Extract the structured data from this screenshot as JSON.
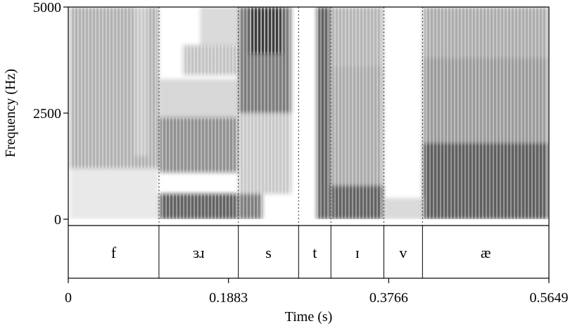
{
  "chart_data": {
    "type": "spectrogram",
    "xlabel": "Time (s)",
    "ylabel": "Frequency (Hz)",
    "xlim": [
      0,
      0.5649
    ],
    "ylim": [
      0,
      5000
    ],
    "x_ticks": [
      {
        "value": 0,
        "label": "0"
      },
      {
        "value": 0.1883,
        "label": "0.1883"
      },
      {
        "value": 0.3766,
        "label": "0.3766"
      },
      {
        "value": 0.5649,
        "label": "0.5649"
      }
    ],
    "y_ticks": [
      {
        "value": 0,
        "label": "0"
      },
      {
        "value": 2500,
        "label": "2500"
      },
      {
        "value": 5000,
        "label": "5000"
      }
    ],
    "boundaries": [
      0.1066,
      0.1999,
      0.2707,
      0.3087,
      0.3709,
      0.4163
    ],
    "segments": [
      {
        "label": "f",
        "start": 0,
        "end": 0.1066
      },
      {
        "label": "ɜɹ",
        "start": 0.1066,
        "end": 0.1999
      },
      {
        "label": "s",
        "start": 0.1999,
        "end": 0.2707
      },
      {
        "label": "t",
        "start": 0.2707,
        "end": 0.3087
      },
      {
        "label": "ɪ",
        "start": 0.3087,
        "end": 0.3709
      },
      {
        "label": "v",
        "start": 0.3709,
        "end": 0.4163
      },
      {
        "label": "æ",
        "start": 0.4163,
        "end": 0.5649
      }
    ],
    "energy_regions": [
      {
        "start": 0.002,
        "end": 0.106,
        "fmin": 1200,
        "fmax": 5000,
        "intensity": 0.42
      },
      {
        "start": 0.002,
        "end": 0.106,
        "fmin": 0,
        "fmax": 1200,
        "intensity": 0.12
      },
      {
        "start": 0.078,
        "end": 0.094,
        "fmin": 1500,
        "fmax": 5000,
        "intensity": 0.22
      },
      {
        "start": 0.107,
        "end": 0.199,
        "fmin": 0,
        "fmax": 600,
        "intensity": 0.85
      },
      {
        "start": 0.107,
        "end": 0.199,
        "fmin": 1100,
        "fmax": 2400,
        "intensity": 0.6
      },
      {
        "start": 0.107,
        "end": 0.199,
        "fmin": 2400,
        "fmax": 3300,
        "intensity": 0.22
      },
      {
        "start": 0.135,
        "end": 0.199,
        "fmin": 3400,
        "fmax": 4100,
        "intensity": 0.32
      },
      {
        "start": 0.155,
        "end": 0.199,
        "fmin": 4100,
        "fmax": 5000,
        "intensity": 0.2
      },
      {
        "start": 0.2,
        "end": 0.262,
        "fmin": 2500,
        "fmax": 5000,
        "intensity": 0.72
      },
      {
        "start": 0.213,
        "end": 0.252,
        "fmin": 3900,
        "fmax": 5000,
        "intensity": 0.95
      },
      {
        "start": 0.2,
        "end": 0.262,
        "fmin": 600,
        "fmax": 2500,
        "intensity": 0.3
      },
      {
        "start": 0.2,
        "end": 0.228,
        "fmin": 0,
        "fmax": 600,
        "intensity": 0.7
      },
      {
        "start": 0.292,
        "end": 0.308,
        "fmin": 0,
        "fmax": 5000,
        "intensity": 0.85
      },
      {
        "start": 0.309,
        "end": 0.37,
        "fmin": 0,
        "fmax": 800,
        "intensity": 0.85
      },
      {
        "start": 0.309,
        "end": 0.37,
        "fmin": 800,
        "fmax": 3600,
        "intensity": 0.45
      },
      {
        "start": 0.309,
        "end": 0.37,
        "fmin": 3600,
        "fmax": 5000,
        "intensity": 0.4
      },
      {
        "start": 0.371,
        "end": 0.416,
        "fmin": 0,
        "fmax": 500,
        "intensity": 0.2
      },
      {
        "start": 0.417,
        "end": 0.564,
        "fmin": 0,
        "fmax": 1800,
        "intensity": 0.88
      },
      {
        "start": 0.417,
        "end": 0.564,
        "fmin": 1800,
        "fmax": 3800,
        "intensity": 0.55
      },
      {
        "start": 0.417,
        "end": 0.564,
        "fmin": 3800,
        "fmax": 5000,
        "intensity": 0.45
      }
    ]
  }
}
